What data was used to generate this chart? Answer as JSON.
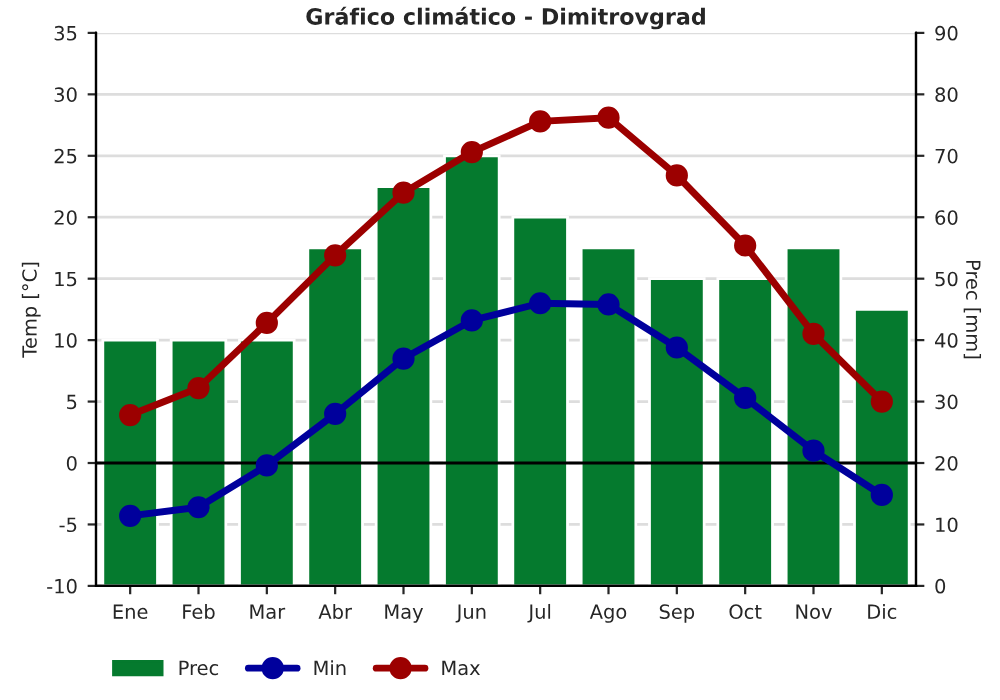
{
  "chart_data": {
    "type": "bar",
    "title": "Gráfico climático - Dimitrovgrad",
    "ylabel": "Temp [°C]",
    "y2label": "Prec [mm]",
    "categories": [
      "Ene",
      "Feb",
      "Mar",
      "Abr",
      "May",
      "Jun",
      "Jul",
      "Ago",
      "Sep",
      "Oct",
      "Nov",
      "Dic"
    ],
    "series": [
      {
        "name": "Prec",
        "axis": "y2",
        "color": "#057a2e",
        "values": [
          40,
          40,
          40,
          55,
          65,
          70,
          60,
          55,
          50,
          50,
          55,
          45
        ]
      },
      {
        "name": "Min",
        "type": "line",
        "color": "#00009c",
        "values": [
          -4.3,
          -3.6,
          -0.2,
          4.0,
          8.5,
          11.6,
          13.0,
          12.9,
          9.4,
          5.3,
          1.0,
          -2.6
        ]
      },
      {
        "name": "Max",
        "type": "line",
        "color": "#9c0000",
        "values": [
          3.9,
          6.1,
          11.4,
          16.9,
          22.0,
          25.3,
          27.8,
          28.1,
          23.4,
          17.7,
          10.5,
          5.0
        ]
      }
    ],
    "ylim": [
      -10,
      35
    ],
    "yticks": [
      -10,
      -5,
      0,
      5,
      10,
      15,
      20,
      25,
      30,
      35
    ],
    "y2lim": [
      0,
      90
    ],
    "y2ticks": [
      0,
      10,
      20,
      30,
      40,
      50,
      60,
      70,
      80,
      90
    ],
    "ref_lines": [
      {
        "axis": "y",
        "value": 0,
        "label": null,
        "color": "#000000"
      }
    ],
    "grid": true,
    "legend": "bottom",
    "marker": "circle",
    "line_style": "solid"
  }
}
